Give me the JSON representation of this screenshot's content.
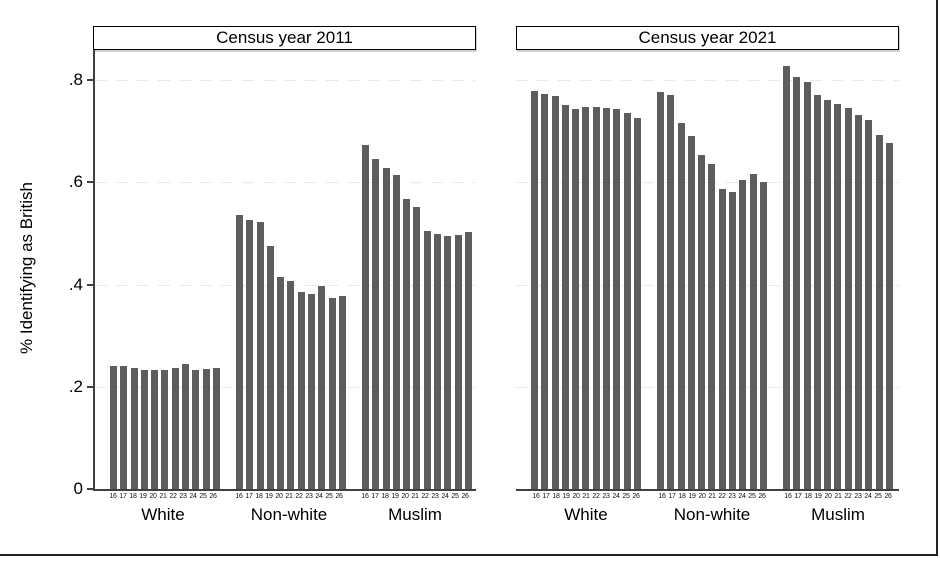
{
  "figure": {
    "ylabel": "% Identifying as British",
    "colors": {
      "bar": "#5d5d5d",
      "gridline": "#e9e9e9",
      "axis": "#404040",
      "frame": "#222222",
      "title_border": "#000000",
      "background": "#ffffff"
    }
  },
  "y_axis": {
    "ticks": [
      {
        "label": "0",
        "value": 0
      },
      {
        "label": ".2",
        "value": 0.2
      },
      {
        "label": ".4",
        "value": 0.4
      },
      {
        "label": ".6",
        "value": 0.6
      },
      {
        "label": ".8",
        "value": 0.8
      }
    ],
    "range": [
      0,
      0.86
    ],
    "grid_values": [
      0.2,
      0.4,
      0.6,
      0.8
    ]
  },
  "chart_data": [
    {
      "type": "bar",
      "title": "Census year 2011",
      "ylabel": "% Identifying as British",
      "categories": [
        "16",
        "17",
        "18",
        "19",
        "20",
        "21",
        "22",
        "23",
        "24",
        "25",
        "26"
      ],
      "ylim": [
        0,
        0.86
      ],
      "grid": true,
      "series": [
        {
          "name": "White",
          "values": [
            0.24,
            0.24,
            0.237,
            0.232,
            0.232,
            0.232,
            0.237,
            0.244,
            0.232,
            0.235,
            0.237
          ]
        },
        {
          "name": "Non-white",
          "values": [
            0.536,
            0.527,
            0.523,
            0.475,
            0.414,
            0.408,
            0.385,
            0.382,
            0.398,
            0.373,
            0.377
          ]
        },
        {
          "name": "Muslim",
          "values": [
            0.673,
            0.645,
            0.629,
            0.614,
            0.568,
            0.551,
            0.504,
            0.499,
            0.496,
            0.498,
            0.502
          ]
        }
      ]
    },
    {
      "type": "bar",
      "title": "Census year 2021",
      "ylabel": "% Identifying as British",
      "categories": [
        "16",
        "17",
        "18",
        "19",
        "20",
        "21",
        "22",
        "23",
        "24",
        "25",
        "26"
      ],
      "ylim": [
        0,
        0.86
      ],
      "grid": true,
      "series": [
        {
          "name": "White",
          "values": [
            0.778,
            0.773,
            0.77,
            0.751,
            0.744,
            0.748,
            0.748,
            0.745,
            0.744,
            0.735,
            0.727
          ]
        },
        {
          "name": "Non-white",
          "values": [
            0.776,
            0.771,
            0.716,
            0.691,
            0.654,
            0.636,
            0.587,
            0.582,
            0.605,
            0.617,
            0.601
          ]
        },
        {
          "name": "Muslim",
          "values": [
            0.827,
            0.807,
            0.796,
            0.772,
            0.761,
            0.753,
            0.746,
            0.732,
            0.722,
            0.693,
            0.678
          ]
        }
      ]
    }
  ]
}
